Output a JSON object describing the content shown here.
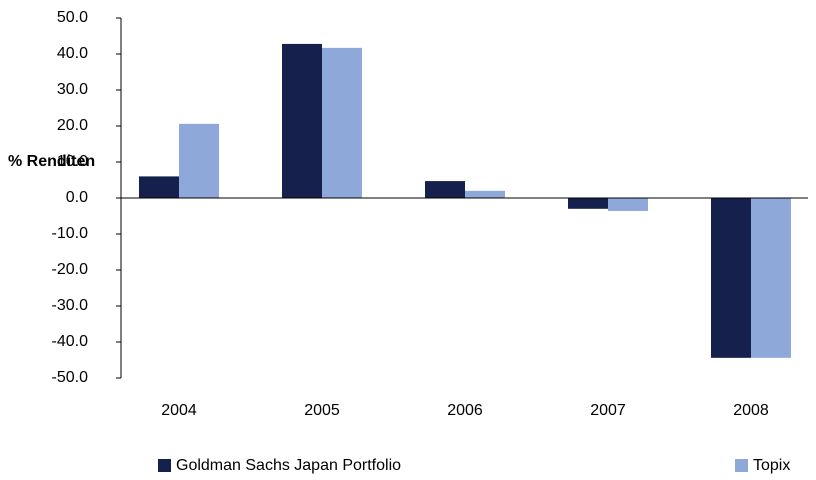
{
  "chart_data": {
    "type": "bar",
    "y_label": "% Renditen",
    "categories": [
      "2004",
      "2005",
      "2006",
      "2007",
      "2008"
    ],
    "series": [
      {
        "name": "Goldman Sachs Japan Portfolio",
        "color": "#16204d",
        "values": [
          6.0,
          42.8,
          4.7,
          -3.0,
          -44.4
        ]
      },
      {
        "name": "Topix",
        "color": "#8ea9d9",
        "values": [
          20.6,
          41.7,
          2.0,
          -3.6,
          -44.4
        ]
      }
    ],
    "ylim": [
      -50,
      50
    ],
    "yticks": [
      {
        "value": -50,
        "label": "-50.0"
      },
      {
        "value": -40,
        "label": "-40.0"
      },
      {
        "value": -30,
        "label": "-30.0"
      },
      {
        "value": -20,
        "label": "-20.0"
      },
      {
        "value": -10,
        "label": "-10.0"
      },
      {
        "value": 0,
        "label": "0.0"
      },
      {
        "value": 10,
        "label": "10.0"
      },
      {
        "value": 20,
        "label": "20.0"
      },
      {
        "value": 30,
        "label": "30.0"
      },
      {
        "value": 40,
        "label": "40.0"
      },
      {
        "value": 50,
        "label": "50.0"
      }
    ],
    "grid": false
  }
}
